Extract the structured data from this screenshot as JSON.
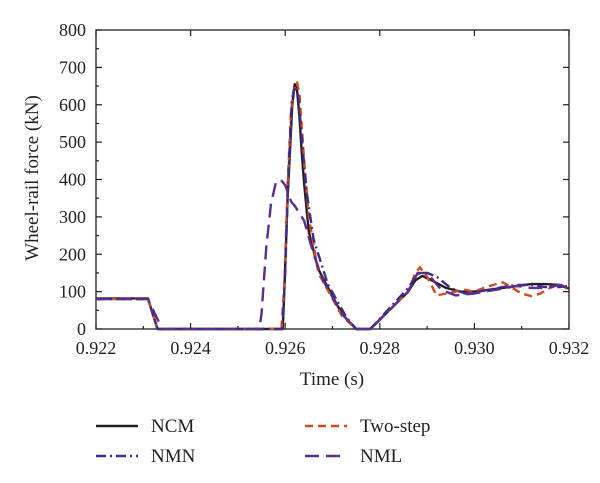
{
  "chart_data": {
    "type": "line",
    "title": "",
    "xlabel": "Time (s)",
    "ylabel": "Wheel-rail force (kN)",
    "xlim": [
      0.922,
      0.932
    ],
    "ylim": [
      0,
      800
    ],
    "xticks": [
      0.922,
      0.924,
      0.926,
      0.928,
      0.93,
      0.932
    ],
    "xtick_labels": [
      "0.922",
      "0.924",
      "0.926",
      "0.928",
      "0.930",
      "0.932"
    ],
    "yticks": [
      0,
      100,
      200,
      300,
      400,
      500,
      600,
      700,
      800
    ],
    "ytick_labels": [
      "0",
      "100",
      "200",
      "300",
      "400",
      "500",
      "600",
      "700",
      "800"
    ],
    "grid": false,
    "legend_position": "below",
    "series": [
      {
        "name": "NCM",
        "color": "#231f20",
        "dash": "solid",
        "x": [
          0.922,
          0.9231,
          0.9233,
          0.92595,
          0.92598,
          0.92605,
          0.92615,
          0.9262,
          0.92625,
          0.9263,
          0.92635,
          0.9264,
          0.9265,
          0.9267,
          0.9272,
          0.9275,
          0.9276,
          0.9278,
          0.9286,
          0.92875,
          0.9289,
          0.9291,
          0.9294,
          0.9297,
          0.93,
          0.9303,
          0.9306,
          0.9309,
          0.9312,
          0.9315,
          0.9318,
          0.932
        ],
        "y": [
          82,
          82,
          0,
          0,
          100,
          350,
          600,
          655,
          640,
          570,
          470,
          390,
          260,
          160,
          40,
          0,
          0,
          0,
          100,
          130,
          142,
          130,
          110,
          100,
          100,
          105,
          110,
          115,
          120,
          120,
          118,
          108
        ]
      },
      {
        "name": "Two-step",
        "color": "#d24a1e",
        "dash": "8,5",
        "x": [
          0.922,
          0.9231,
          0.9233,
          0.92592,
          0.92598,
          0.92605,
          0.92612,
          0.92618,
          0.92625,
          0.9263,
          0.92635,
          0.9264,
          0.9265,
          0.9267,
          0.9272,
          0.9275,
          0.9276,
          0.9278,
          0.9286,
          0.92875,
          0.92885,
          0.929,
          0.9292,
          0.9294,
          0.9296,
          0.9298,
          0.93,
          0.9302,
          0.9304,
          0.9306,
          0.9308,
          0.931,
          0.9312,
          0.9314,
          0.9316,
          0.9318,
          0.932
        ],
        "y": [
          80,
          80,
          0,
          0,
          120,
          380,
          580,
          640,
          660,
          630,
          540,
          450,
          300,
          150,
          35,
          0,
          0,
          0,
          100,
          150,
          165,
          140,
          90,
          95,
          100,
          105,
          100,
          110,
          118,
          125,
          110,
          95,
          88,
          95,
          110,
          120,
          105
        ]
      },
      {
        "name": "NMN",
        "color": "#3a2d8f",
        "dash": "10,4,2,4",
        "x": [
          0.922,
          0.9231,
          0.9233,
          0.92594,
          0.926,
          0.92607,
          0.92614,
          0.9262,
          0.92627,
          0.92632,
          0.92638,
          0.92645,
          0.9266,
          0.9269,
          0.9273,
          0.9275,
          0.9276,
          0.9278,
          0.9286,
          0.9288,
          0.929,
          0.9292,
          0.9295,
          0.9298,
          0.93,
          0.9303,
          0.9306,
          0.9309,
          0.9312,
          0.9315,
          0.9318,
          0.932
        ],
        "y": [
          80,
          80,
          0,
          0,
          150,
          420,
          610,
          650,
          630,
          560,
          470,
          370,
          240,
          120,
          30,
          0,
          0,
          0,
          110,
          148,
          150,
          140,
          110,
          95,
          98,
          105,
          112,
          118,
          118,
          112,
          112,
          115
        ]
      },
      {
        "name": "NML",
        "color": "#5b2d8e",
        "dash": "14,7",
        "x": [
          0.922,
          0.9231,
          0.9234,
          0.92545,
          0.9255,
          0.9256,
          0.9257,
          0.9258,
          0.9259,
          0.926,
          0.92607,
          0.92613,
          0.9262,
          0.9263,
          0.9264,
          0.9266,
          0.9268,
          0.9272,
          0.9275,
          0.9276,
          0.9278,
          0.9286,
          0.9288,
          0.929,
          0.9293,
          0.9296,
          0.93,
          0.9303,
          0.9306,
          0.9309,
          0.9312,
          0.9315,
          0.9318,
          0.932
        ],
        "y": [
          80,
          80,
          0,
          0,
          40,
          220,
          335,
          390,
          400,
          385,
          360,
          340,
          330,
          310,
          290,
          200,
          130,
          40,
          0,
          0,
          0,
          100,
          150,
          150,
          105,
          90,
          95,
          102,
          108,
          115,
          110,
          110,
          118,
          112
        ]
      }
    ]
  }
}
